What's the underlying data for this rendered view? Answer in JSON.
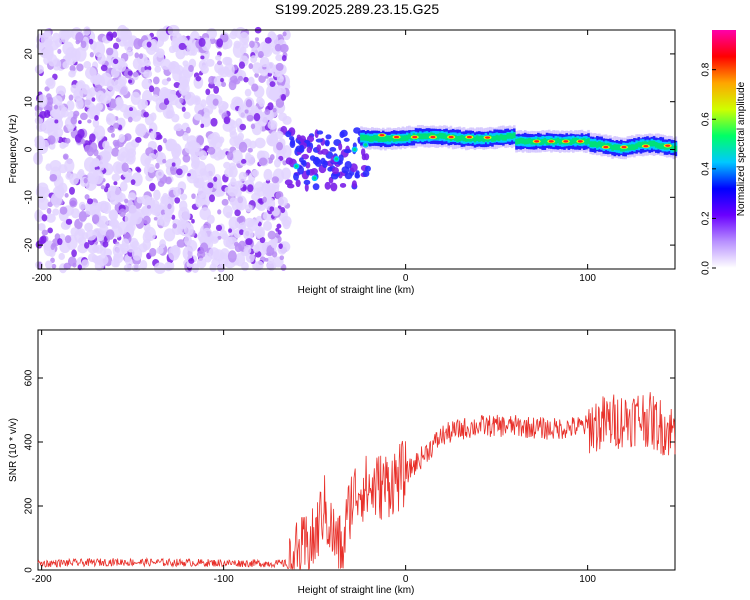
{
  "title": "S199.2025.289.23.15.G25",
  "chart_data": [
    {
      "type": "heatmap",
      "xlabel": "Height of straight line (km)",
      "ylabel": "Frequency (Hz)",
      "xlim": [
        -202,
        148
      ],
      "ylim": [
        -25,
        25
      ],
      "xticks": [
        -200,
        -100,
        0,
        100
      ],
      "yticks": [
        -20,
        -10,
        0,
        10,
        20
      ],
      "colorbar": {
        "label": "Normalized spectral amplitude",
        "range": [
          0,
          0.96
        ],
        "ticks": [
          0.0,
          0.2,
          0.4,
          0.6,
          0.8
        ],
        "colors": [
          "#ffffff",
          "#b890ff",
          "#6a00ff",
          "#0000ff",
          "#00c8ff",
          "#00ff66",
          "#cfff00",
          "#ffa500",
          "#ff0000",
          "#ff00aa"
        ]
      },
      "description_points": [
        {
          "x": -200,
          "y": 0,
          "note": "noise region from -202 to -65 km"
        },
        {
          "x": -50,
          "y": -5,
          "note": "transition"
        },
        {
          "x": 0,
          "y": 2.5,
          "note": "strong signal band"
        },
        {
          "x": 80,
          "y": 1.5
        },
        {
          "x": 145,
          "y": 0.5
        }
      ]
    },
    {
      "type": "line",
      "xlabel": "Height of straight line (km)",
      "ylabel": "SNR (10 * v/v)",
      "xlim": [
        -202,
        148
      ],
      "ylim": [
        0,
        750
      ],
      "xticks": [
        -200,
        -100,
        0,
        100
      ],
      "yticks": [
        0,
        200,
        400,
        600
      ],
      "color": "#e8302a",
      "series": [
        {
          "name": "SNR",
          "x": [
            -202,
            -160,
            -65,
            -50,
            -45,
            -40,
            -35,
            -30,
            -25,
            -20,
            -15,
            -10,
            0,
            10,
            20,
            30,
            40,
            60,
            80,
            100,
            110,
            120,
            130,
            140,
            148
          ],
          "y": [
            20,
            25,
            20,
            90,
            200,
            110,
            60,
            220,
            260,
            250,
            260,
            270,
            300,
            360,
            420,
            440,
            450,
            450,
            440,
            450,
            460,
            470,
            480,
            450,
            430
          ]
        }
      ]
    }
  ]
}
